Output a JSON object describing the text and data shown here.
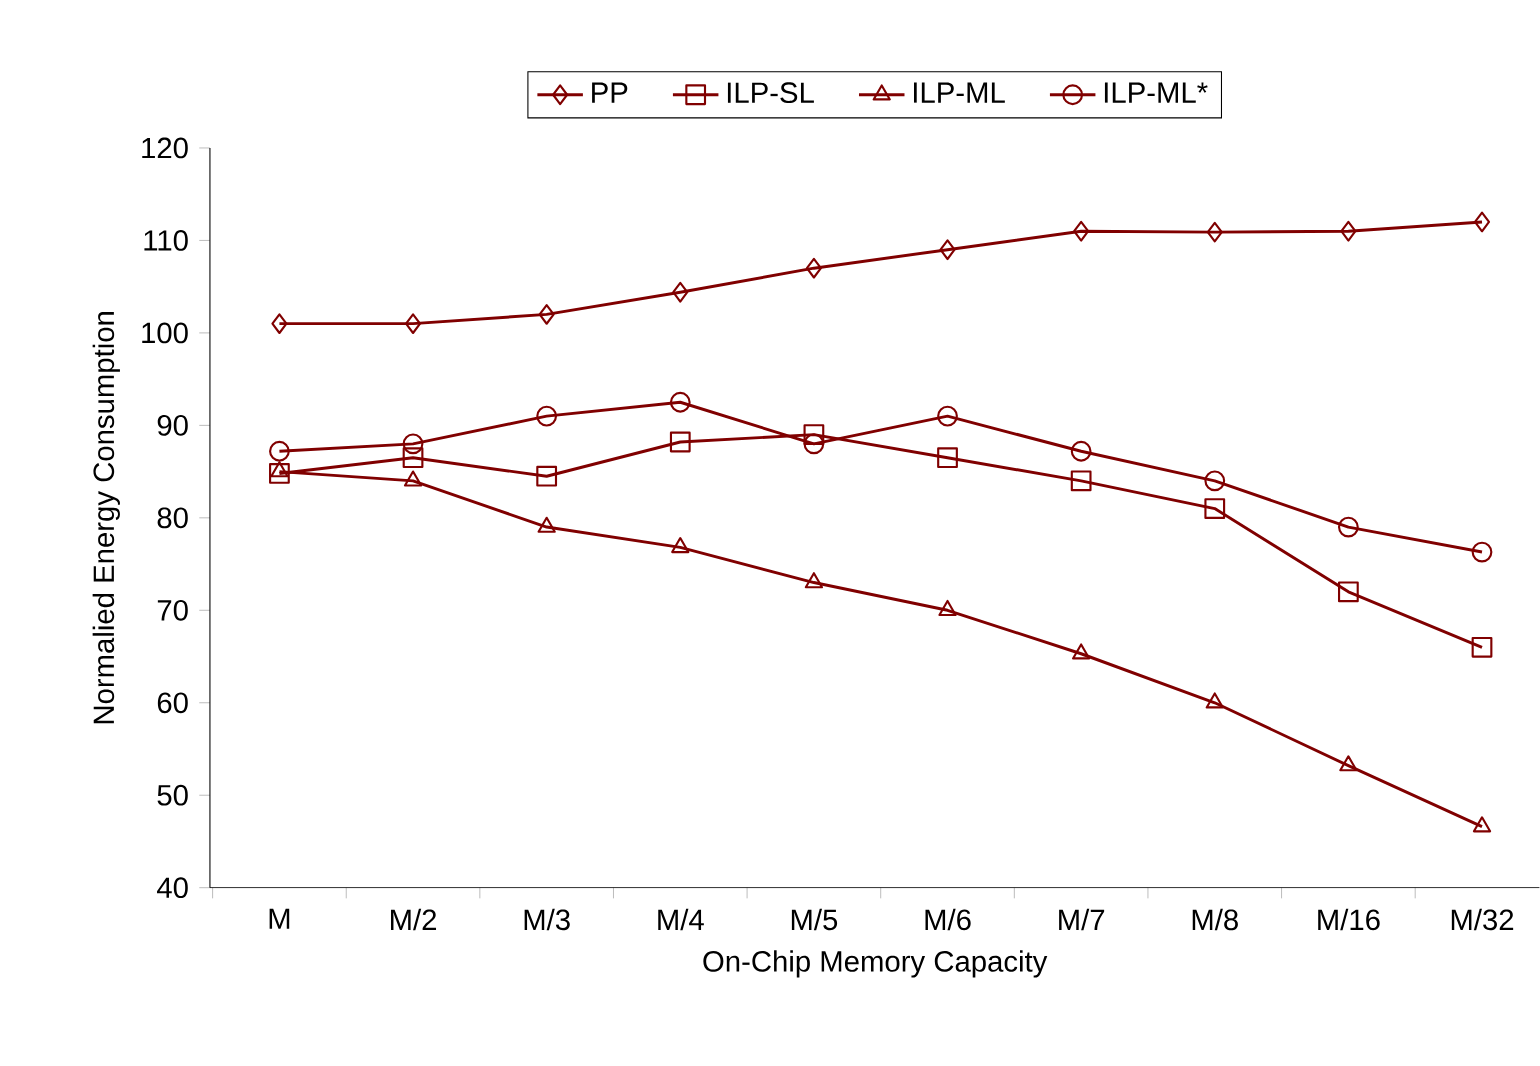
{
  "chart_data": {
    "type": "line",
    "xlabel": "On-Chip Memory Capacity",
    "ylabel": "Normalied Energy Consumption",
    "categories": [
      "M",
      "M/2",
      "M/3",
      "M/4",
      "M/5",
      "M/6",
      "M/7",
      "M/8",
      "M/16",
      "M/32"
    ],
    "series": [
      {
        "name": "PP",
        "color": "#800000",
        "marker": "diamond",
        "values": [
          101,
          101,
          102,
          104.4,
          107,
          109,
          111,
          110.9,
          111,
          112
        ]
      },
      {
        "name": "ILP-SL",
        "color": "#800000",
        "marker": "square",
        "values": [
          84.8,
          86.5,
          84.5,
          88.2,
          89,
          86.5,
          84,
          81,
          72,
          66
        ]
      },
      {
        "name": "ILP-ML",
        "color": "#800000",
        "marker": "triangle",
        "values": [
          85,
          84,
          79,
          76.8,
          73,
          70,
          65.3,
          60,
          53.2,
          46.6
        ]
      },
      {
        "name": "ILP-ML*",
        "color": "#800000",
        "marker": "circle",
        "values": [
          87.2,
          88,
          91,
          92.5,
          88,
          91,
          87.2,
          84,
          79,
          76.3
        ]
      }
    ],
    "ylim": [
      40,
      120
    ],
    "yticks": [
      40,
      50,
      60,
      70,
      80,
      90,
      100,
      110,
      120
    ],
    "legend": "top",
    "grid": false,
    "line_style": "solid"
  }
}
